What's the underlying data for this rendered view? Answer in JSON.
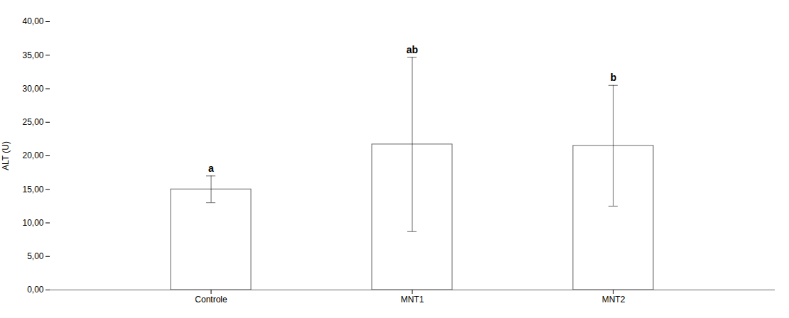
{
  "chart_data": {
    "type": "bar",
    "categories": [
      "Controle",
      "MNT1",
      "MNT2"
    ],
    "values": [
      15.0,
      21.7,
      21.5
    ],
    "errors": [
      2.0,
      13.0,
      9.0
    ],
    "annotations": [
      "a",
      "ab",
      "b"
    ],
    "ylabel": "ALT (U)",
    "ylim": [
      0,
      40
    ],
    "yticks": [
      {
        "value": 0,
        "label": "0,00"
      },
      {
        "value": 5,
        "label": "5,00"
      },
      {
        "value": 10,
        "label": "10,00"
      },
      {
        "value": 15,
        "label": "15,00"
      },
      {
        "value": 20,
        "label": "20,00"
      },
      {
        "value": 25,
        "label": "25,00"
      },
      {
        "value": 30,
        "label": "30,00"
      },
      {
        "value": 35,
        "label": "35,00"
      },
      {
        "value": 40,
        "label": "40,00"
      }
    ],
    "color": "#ffffff",
    "grid": false
  }
}
